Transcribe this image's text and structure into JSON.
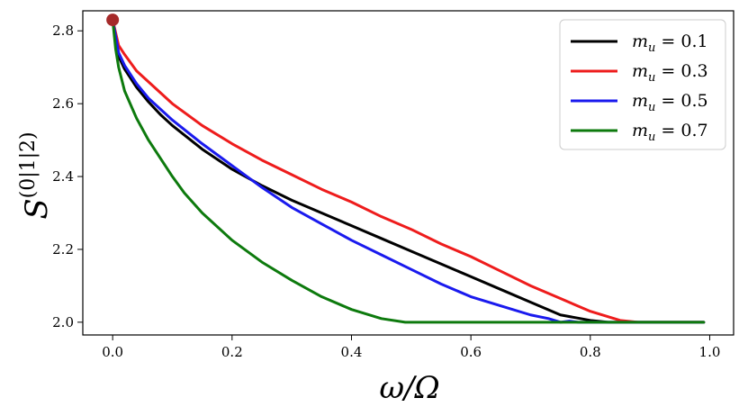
{
  "chart_data": {
    "type": "line",
    "title": "",
    "xlabel": "ω/Ω",
    "ylabel_base": "S",
    "ylabel_sup": "(0|1|2)",
    "xlim": [
      -0.05,
      1.04
    ],
    "ylim": [
      1.965,
      2.855
    ],
    "xticks": [
      0.0,
      0.2,
      0.4,
      0.6,
      0.8,
      1.0
    ],
    "xtick_labels": [
      "0.0",
      "0.2",
      "0.4",
      "0.6",
      "0.8",
      "1.0"
    ],
    "yticks": [
      2.0,
      2.2,
      2.4,
      2.6,
      2.8
    ],
    "ytick_labels": [
      "2.0",
      "2.2",
      "2.4",
      "2.6",
      "2.8"
    ],
    "grid": false,
    "legend_position": "top-right",
    "marker": {
      "x": 0.0,
      "y": 2.83,
      "color": "#a52a2a"
    },
    "series": [
      {
        "name": "m_u = 0.1",
        "label_var": "m",
        "label_sub": "u",
        "label_value": "= 0.1",
        "color": "#000000",
        "x": [
          0.0,
          0.01,
          0.02,
          0.04,
          0.06,
          0.08,
          0.1,
          0.15,
          0.2,
          0.25,
          0.3,
          0.35,
          0.4,
          0.45,
          0.5,
          0.55,
          0.6,
          0.65,
          0.7,
          0.75,
          0.8,
          0.83,
          0.99
        ],
        "y": [
          2.83,
          2.73,
          2.695,
          2.645,
          2.605,
          2.57,
          2.54,
          2.475,
          2.42,
          2.375,
          2.335,
          2.3,
          2.265,
          2.23,
          2.195,
          2.16,
          2.125,
          2.09,
          2.055,
          2.02,
          2.005,
          2.0,
          2.0
        ]
      },
      {
        "name": "m_u = 0.3",
        "label_var": "m",
        "label_sub": "u",
        "label_value": "= 0.3",
        "color": "#ee1c1c",
        "x": [
          0.0,
          0.01,
          0.02,
          0.04,
          0.06,
          0.08,
          0.1,
          0.15,
          0.2,
          0.25,
          0.3,
          0.35,
          0.4,
          0.45,
          0.5,
          0.55,
          0.6,
          0.65,
          0.7,
          0.75,
          0.8,
          0.85,
          0.88,
          0.99
        ],
        "y": [
          2.83,
          2.76,
          2.735,
          2.69,
          2.66,
          2.63,
          2.6,
          2.54,
          2.49,
          2.445,
          2.405,
          2.365,
          2.33,
          2.29,
          2.255,
          2.215,
          2.18,
          2.14,
          2.1,
          2.065,
          2.03,
          2.005,
          2.0,
          2.0
        ]
      },
      {
        "name": "m_u = 0.5",
        "label_var": "m",
        "label_sub": "u",
        "label_value": "= 0.5",
        "color": "#1a1aee",
        "x": [
          0.0,
          0.01,
          0.02,
          0.04,
          0.06,
          0.08,
          0.1,
          0.15,
          0.2,
          0.25,
          0.3,
          0.35,
          0.4,
          0.45,
          0.5,
          0.55,
          0.6,
          0.65,
          0.7,
          0.73,
          0.75,
          0.765,
          0.78,
          0.99
        ],
        "y": [
          2.83,
          2.74,
          2.705,
          2.655,
          2.615,
          2.585,
          2.555,
          2.49,
          2.43,
          2.37,
          2.315,
          2.27,
          2.225,
          2.185,
          2.145,
          2.105,
          2.07,
          2.045,
          2.02,
          2.01,
          2.0,
          2.003,
          2.0,
          2.0
        ]
      },
      {
        "name": "m_u = 0.7",
        "label_var": "m",
        "label_sub": "u",
        "label_value": "= 0.7",
        "color": "#0d7a0d",
        "x": [
          0.0,
          0.005,
          0.01,
          0.02,
          0.04,
          0.06,
          0.08,
          0.1,
          0.12,
          0.15,
          0.2,
          0.25,
          0.3,
          0.35,
          0.4,
          0.45,
          0.49,
          0.99
        ],
        "y": [
          2.83,
          2.75,
          2.7,
          2.635,
          2.56,
          2.5,
          2.45,
          2.4,
          2.355,
          2.3,
          2.225,
          2.165,
          2.115,
          2.07,
          2.035,
          2.01,
          2.0,
          2.0
        ]
      }
    ]
  }
}
